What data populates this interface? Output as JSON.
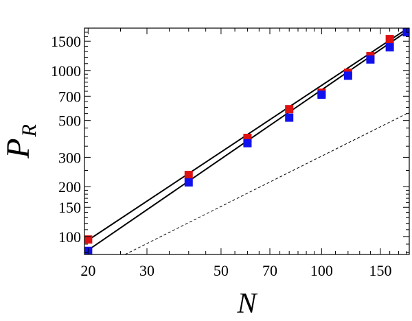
{
  "chart_data": {
    "type": "scatter",
    "xlabel": "N",
    "ylabel": "P",
    "ylabel_subscript": "R",
    "xscale": "log",
    "yscale": "log",
    "xlim": [
      19.5,
      183
    ],
    "ylim": [
      78,
      1800
    ],
    "xticks": [
      20,
      30,
      50,
      70,
      100,
      150
    ],
    "yticks": [
      100,
      150,
      200,
      300,
      500,
      700,
      1000,
      1500
    ],
    "xtick_labels": [
      "20",
      "30",
      "50",
      "70",
      "100",
      "150"
    ],
    "ytick_labels": [
      "100",
      "150",
      "200",
      "300",
      "500",
      "700",
      "1000",
      "1500"
    ],
    "grid": false,
    "series": [
      {
        "color": "#dd1111",
        "marker": "square",
        "points": [
          [
            20,
            96
          ],
          [
            40,
            235
          ],
          [
            60,
            393
          ],
          [
            80,
            585
          ],
          [
            100,
            735
          ],
          [
            120,
            970
          ],
          [
            140,
            1220
          ],
          [
            160,
            1545
          ],
          [
            180,
            1700
          ]
        ]
      },
      {
        "color": "#1111ee",
        "marker": "square",
        "points": [
          [
            20,
            82
          ],
          [
            40,
            212
          ],
          [
            60,
            365
          ],
          [
            80,
            520
          ],
          [
            100,
            715
          ],
          [
            120,
            930
          ],
          [
            140,
            1165
          ],
          [
            160,
            1380
          ],
          [
            180,
            1700
          ]
        ]
      }
    ],
    "lines": [
      {
        "style": "solid",
        "color": "#000000",
        "points": [
          [
            19.5,
            92
          ],
          [
            183,
            1820
          ]
        ]
      },
      {
        "style": "solid",
        "color": "#000000",
        "points": [
          [
            19.5,
            80
          ],
          [
            183,
            1760
          ]
        ]
      },
      {
        "style": "dashed",
        "color": "#000000",
        "points": [
          [
            25.8,
            78
          ],
          [
            183,
            560
          ]
        ]
      }
    ]
  }
}
